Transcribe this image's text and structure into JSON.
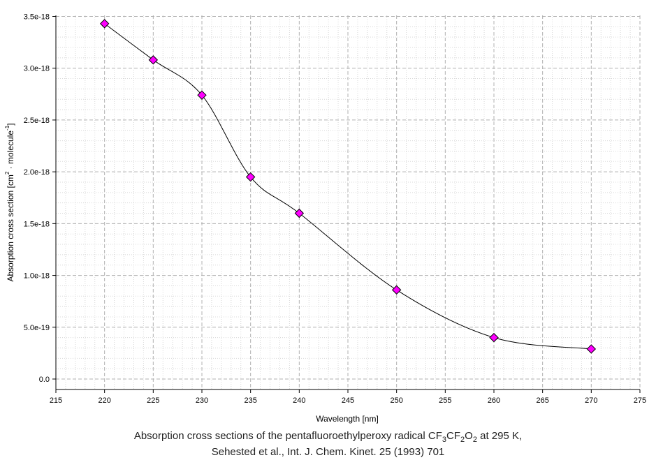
{
  "chart_data": {
    "type": "line",
    "xlabel": "Wavelength [nm]",
    "ylabel": {
      "main": "Absorption cross section [cm",
      "sup1": "2",
      "mid": " · molecule",
      "sup2": "-1",
      "end": "]"
    },
    "xlim": [
      215,
      275
    ],
    "ylim": [
      0,
      3.5e-18
    ],
    "x_ticks": [
      "215",
      "220",
      "225",
      "230",
      "235",
      "240",
      "245",
      "250",
      "255",
      "260",
      "265",
      "270",
      "275"
    ],
    "y_ticks": [
      "0.0",
      "5.0e-19",
      "1.0e-18",
      "1.5e-18",
      "2.0e-18",
      "2.5e-18",
      "3.0e-18",
      "3.5e-18"
    ],
    "grid": true,
    "series": [
      {
        "color": "#ff00ff",
        "marker": "diamond",
        "x": [
          220,
          225,
          230,
          235,
          240,
          250,
          260,
          270
        ],
        "y": [
          3.43e-18,
          3.08e-18,
          2.74e-18,
          1.95e-18,
          1.6e-18,
          8.6e-19,
          4e-19,
          2.9e-19
        ]
      }
    ]
  },
  "caption": {
    "line1_pre": "Absorption cross sections of the pentafluoroethylperoxy radical CF",
    "sub1": "3",
    "mid1": "CF",
    "sub2": "2",
    "mid2": "O",
    "sub3": "2",
    "line1_post": " at 295 K,",
    "line2": "Sehested et al., Int. J. Chem. Kinet. 25 (1993) 701"
  }
}
